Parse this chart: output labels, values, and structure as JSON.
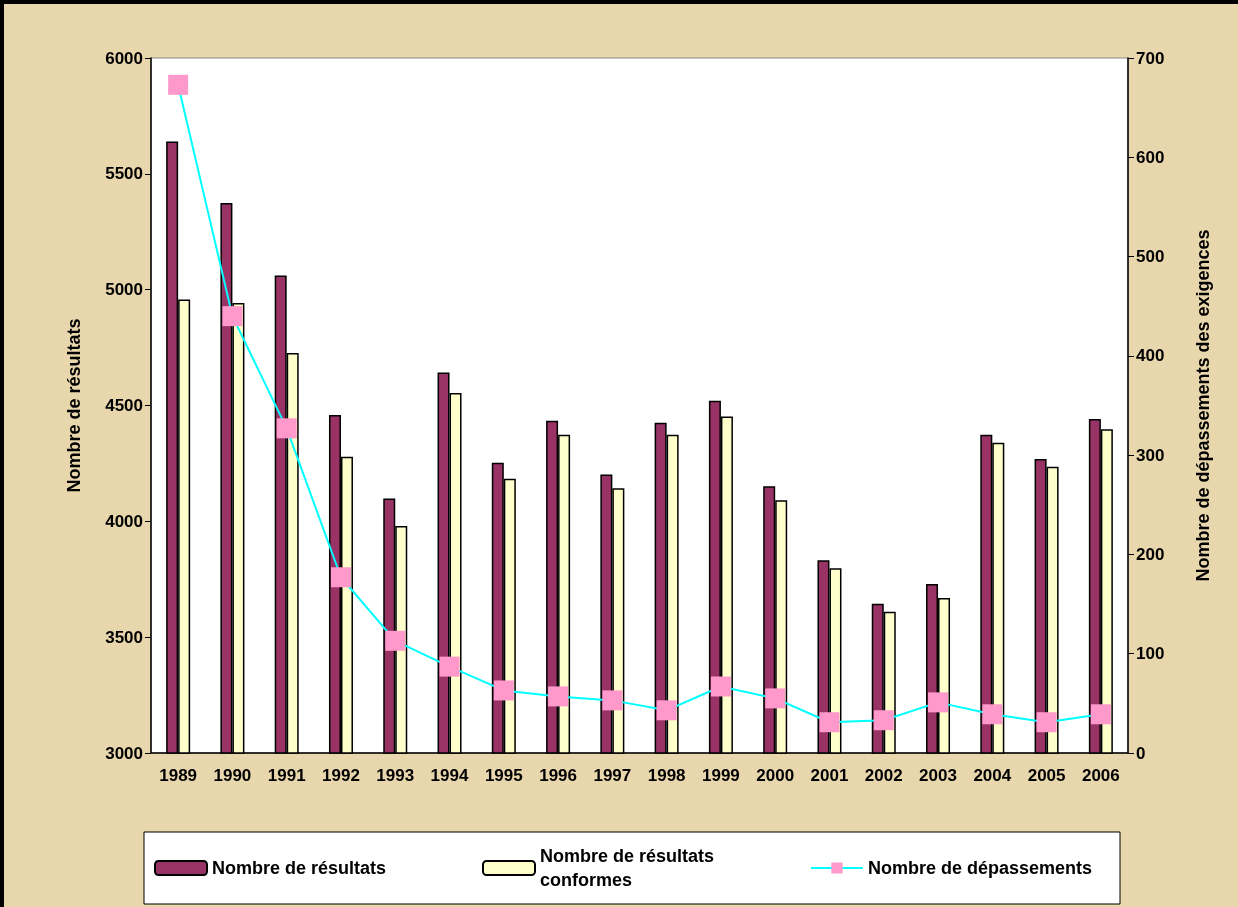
{
  "chart_data": {
    "type": "bar",
    "ylabel": "Nombre de résultats",
    "y2label": "Nombre de dépassements des exigences",
    "categories": [
      "1989",
      "1990",
      "1991",
      "1992",
      "1993",
      "1994",
      "1995",
      "1996",
      "1997",
      "1998",
      "1999",
      "2000",
      "2001",
      "2002",
      "2003",
      "2004",
      "2005",
      "2006"
    ],
    "series": [
      {
        "name": "Nombre de résultats",
        "color": "#993366",
        "values": [
          5640,
          5374,
          5061,
          4459,
          4099,
          4642,
          4253,
          4434,
          4202,
          4426,
          4521,
          4151,
          3832,
          3644,
          3729,
          4374,
          4269,
          4442
        ]
      },
      {
        "name": "Nombre de résultats conformes",
        "color": "#ffffcc",
        "values": [
          4958,
          4942,
          4727,
          4279,
          3980,
          4554,
          4184,
          4374,
          4143,
          4374,
          4452,
          4091,
          3798,
          3610,
          3669,
          4339,
          4236,
          4398
        ]
      },
      {
        "name": "Nombre de dépassements",
        "type": "line",
        "axis": "y2",
        "color": "#00ffff",
        "marker": "square",
        "values": [
          673,
          440,
          327,
          177,
          113,
          87,
          63,
          57,
          53,
          43,
          67,
          55,
          31,
          33,
          51,
          39,
          31,
          39
        ]
      }
    ],
    "ylim": [
      3000,
      6000
    ],
    "yticks": [
      3000,
      3500,
      4000,
      4500,
      5000,
      5500,
      6000
    ],
    "y2lim": [
      0,
      700
    ],
    "y2ticks": [
      0,
      100,
      200,
      300,
      400,
      500,
      600,
      700
    ],
    "grid": false,
    "legend": "bottom"
  }
}
